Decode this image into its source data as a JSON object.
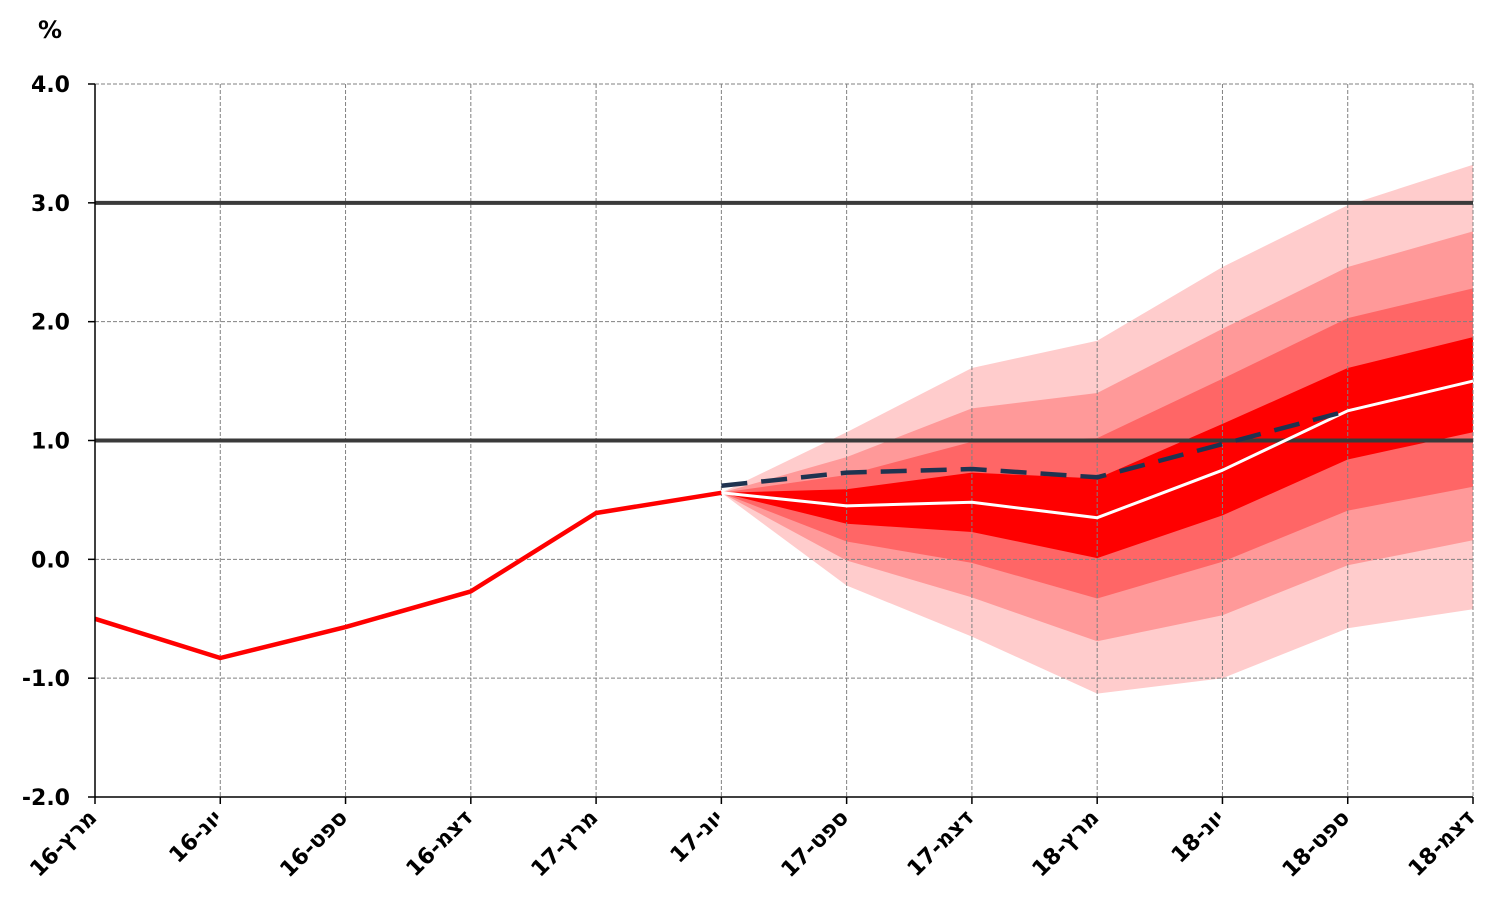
{
  "chart_data": {
    "type": "line",
    "title": "",
    "unit_label": "%",
    "ylim": [
      -2.0,
      4.0
    ],
    "y_ticks": [
      4.0,
      3.0,
      2.0,
      1.0,
      0.0,
      -1.0,
      -2.0
    ],
    "y_tick_labels": [
      "4.0",
      "3.0",
      "2.0",
      "1.0",
      "0.0",
      "-1.0",
      "-2.0"
    ],
    "categories": [
      "מרץ-16",
      "יונ-16",
      "ספט-16",
      "דצמ-16",
      "מרץ-17",
      "יונ-17",
      "ספט-17",
      "דצמ-17",
      "מרץ-18",
      "יונ-18",
      "ספט-18",
      "דצמ-18"
    ],
    "grid": "dashed vertical and horizontal",
    "target_range_lines": [
      1.0,
      3.0
    ],
    "series": [
      {
        "role": "actual",
        "color": "#ff0000",
        "values": [
          -0.5,
          -0.83,
          -0.57,
          -0.27,
          0.39,
          0.56,
          null,
          null,
          null,
          null,
          null,
          null
        ]
      },
      {
        "role": "central-forecast",
        "color": "#ffffff",
        "values": [
          null,
          null,
          null,
          null,
          null,
          0.56,
          0.45,
          0.48,
          0.35,
          0.75,
          1.25,
          1.5
        ]
      },
      {
        "role": "previous-forecast",
        "color": "#1f3350",
        "style": "dashed",
        "values": [
          null,
          null,
          null,
          null,
          null,
          0.62,
          0.73,
          0.76,
          0.69,
          0.97,
          1.25,
          null
        ]
      }
    ],
    "fan_bands": {
      "categories_from": 5,
      "colors": [
        "#ffcccc",
        "#ff9999",
        "#ff6666",
        "#ff0000"
      ],
      "bands": [
        {
          "lower": [
            0.56,
            -0.22,
            -0.65,
            -1.13,
            -1.0,
            -0.58,
            -0.42
          ],
          "upper": [
            0.56,
            1.07,
            1.61,
            1.84,
            2.46,
            2.98,
            3.32
          ]
        },
        {
          "lower": [
            0.56,
            -0.01,
            -0.32,
            -0.69,
            -0.47,
            -0.05,
            0.16
          ],
          "upper": [
            0.56,
            0.86,
            1.27,
            1.4,
            1.94,
            2.46,
            2.76
          ]
        },
        {
          "lower": [
            0.56,
            0.15,
            -0.03,
            -0.33,
            -0.02,
            0.41,
            0.61
          ],
          "upper": [
            0.56,
            0.71,
            0.99,
            1.02,
            1.52,
            2.03,
            2.28
          ]
        },
        {
          "lower": [
            0.56,
            0.3,
            0.23,
            0.01,
            0.37,
            0.84,
            1.07
          ],
          "upper": [
            0.56,
            0.59,
            0.73,
            0.68,
            1.14,
            1.61,
            1.87
          ]
        }
      ]
    }
  }
}
